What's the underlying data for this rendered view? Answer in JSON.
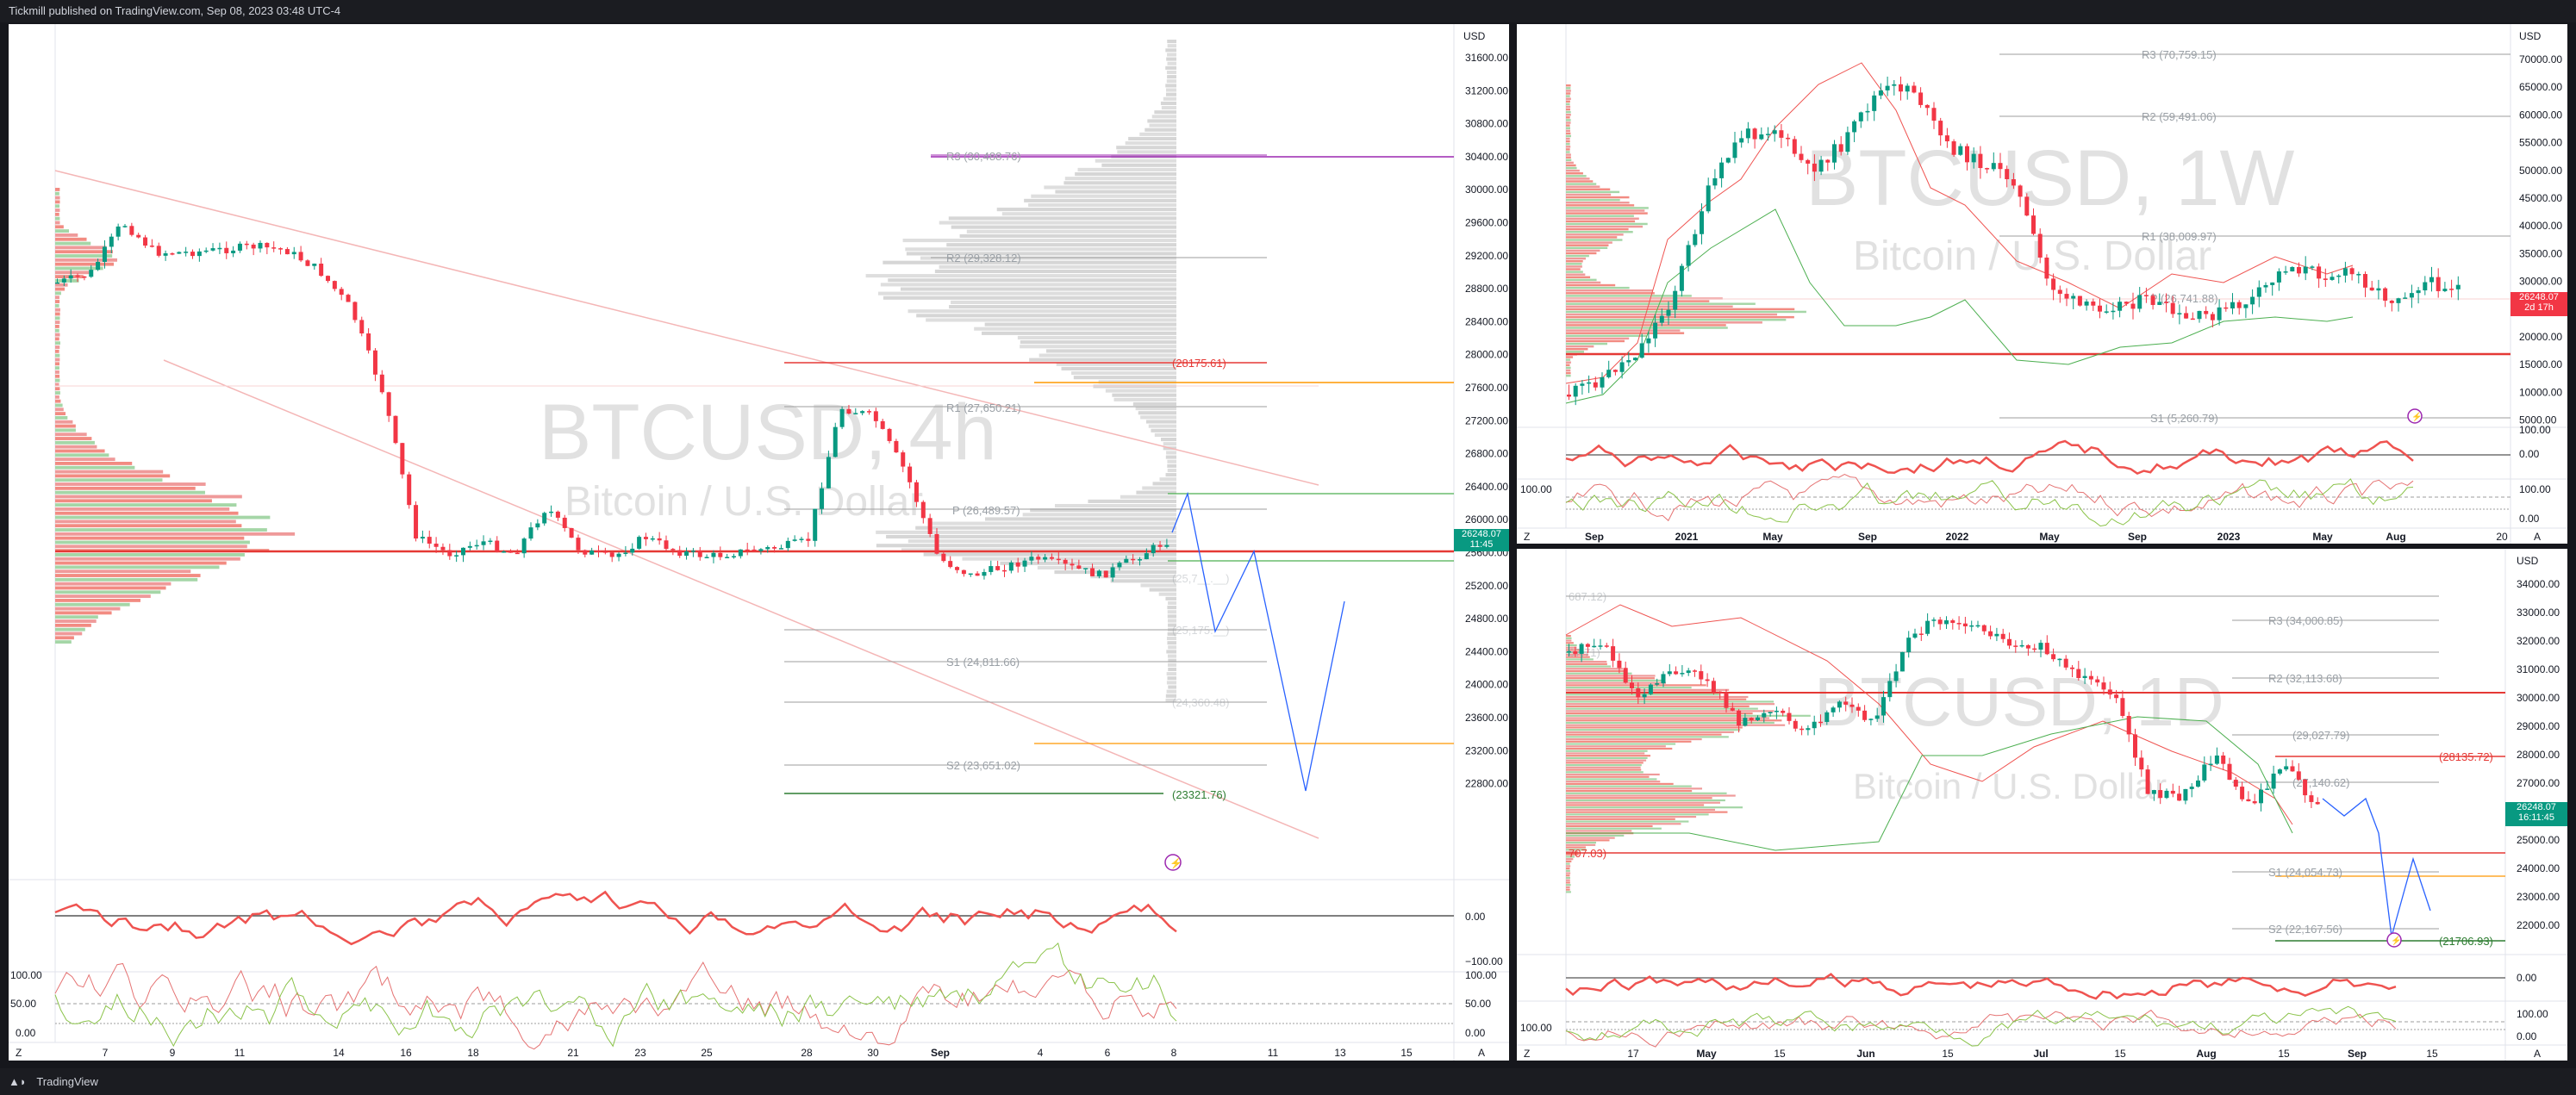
{
  "header": {
    "text": "Tickmill published on TradingView.com, Sep 08, 2023 03:48 UTC-4"
  },
  "footer": {
    "brand": "TradingView",
    "logo_icon": "tradingview-logo-icon"
  },
  "charts": {
    "left": {
      "symbol": "BTCUSD, 4h",
      "description": "Bitcoin / U.S. Dollar",
      "currency": "USD",
      "price_label": "26248.07",
      "countdown": "11:45",
      "y_ticks": [
        "31600.00",
        "31200.00",
        "30800.00",
        "30400.00",
        "30000.00",
        "29600.00",
        "29200.00",
        "28800.00",
        "28400.00",
        "28000.00",
        "27600.00",
        "27200.00",
        "26800.00",
        "26400.00",
        "26000.00",
        "25600.00",
        "25200.00",
        "24800.00",
        "24400.00",
        "24000.00",
        "23600.00",
        "23200.00",
        "22800.00"
      ],
      "x_ticks": [
        "7",
        "9",
        "11",
        "14",
        "16",
        "18",
        "21",
        "23",
        "25",
        "28",
        "30",
        "Sep",
        "4",
        "6",
        "8",
        "11",
        "13",
        "15"
      ],
      "pivots": [
        "R3 (30,488.76)",
        "R2 (29,328.12)",
        "R1 (27,650.21)",
        "P (26,489.57)",
        "S1 (24,811.66)",
        "S2 (23,651.02)"
      ],
      "pivot_faint": [
        "(25,7__.__)",
        "(25,175.__)",
        "(24,360.48)"
      ],
      "levels": [
        "(28175.61)",
        "(23321.76)"
      ],
      "osc1_ticks": [
        "0.00",
        "−100.00"
      ],
      "osc2_ticks": [
        "100.00",
        "50.00",
        "0.00"
      ],
      "corner_left": "Z",
      "corner_right": "A"
    },
    "top_right": {
      "symbol": "BTCUSD, 1W",
      "description": "Bitcoin / U.S. Dollar",
      "currency": "USD",
      "price_label": "26248.07",
      "countdown": "2d 17h",
      "y_ticks": [
        "70000.00",
        "65000.00",
        "60000.00",
        "55000.00",
        "50000.00",
        "45000.00",
        "40000.00",
        "35000.00",
        "30000.00",
        "25000.00",
        "20000.00",
        "15000.00",
        "10000.00",
        "5000.00"
      ],
      "x_ticks": [
        "Sep",
        "2021",
        "May",
        "Sep",
        "2022",
        "May",
        "Sep",
        "2023",
        "May",
        "Aug",
        "20"
      ],
      "pivots": [
        "R3 (70,759.15)",
        "R2 (59,491.06)",
        "R1 (38,009.97)",
        "P (26,741.88)",
        "S1 (5,260.79)"
      ],
      "osc1_ticks": [
        "100.00",
        "0.00"
      ],
      "osc2_ticks": [
        "100.00",
        "0.00"
      ],
      "osc2_left_tick": "100.00",
      "corner_left": "Z",
      "corner_right": "A"
    },
    "bottom_right": {
      "symbol": "BTCUSD, 1D",
      "description": "Bitcoin / U.S. Dollar",
      "currency": "USD",
      "price_label": "26248.07",
      "countdown": "16:11:45",
      "y_ticks": [
        "34000.00",
        "33000.00",
        "32000.00",
        "31000.00",
        "30000.00",
        "29000.00",
        "28000.00",
        "27000.00",
        "26000.00",
        "25000.00",
        "24000.00",
        "23000.00",
        "22000.00"
      ],
      "x_ticks": [
        "17",
        "May",
        "15",
        "Jun",
        "15",
        "Jul",
        "15",
        "Aug",
        "15",
        "Sep",
        "15"
      ],
      "pivots": [
        "R3 (34,000.85)",
        "R2 (32,113.68)",
        "(29,027.79)",
        "(27,140.62)",
        "S1 (24,054.73)",
        "S2 (22,167.56)"
      ],
      "left_labels": [
        "687.12)",
        "67.71)",
        "707.03)"
      ],
      "levels": [
        "(28135.72)",
        "(21706.93)"
      ],
      "osc1_ticks": [
        "0.00"
      ],
      "osc2_ticks": [
        "100.00",
        "0.00"
      ],
      "osc2_left_tick": "100.00",
      "corner_left": "Z",
      "corner_right": "A"
    }
  }
}
